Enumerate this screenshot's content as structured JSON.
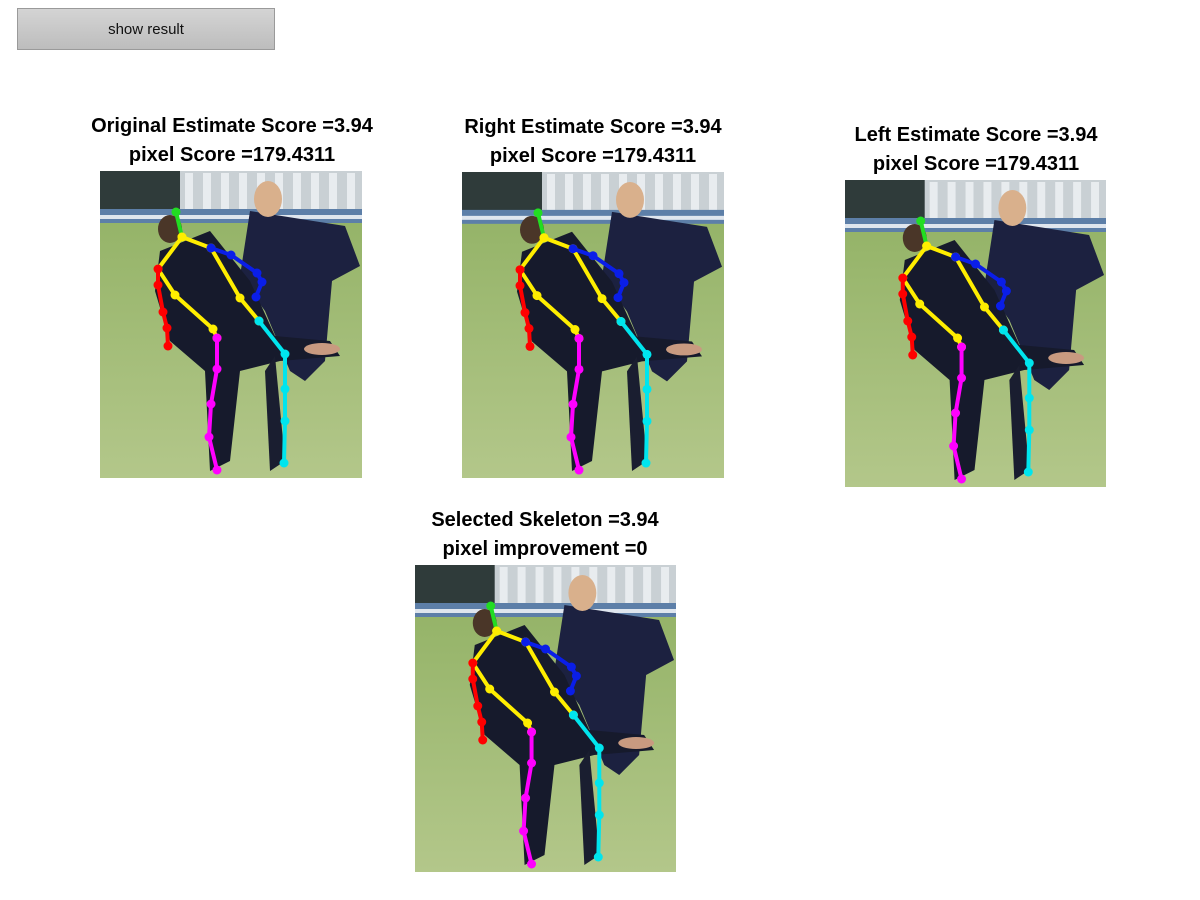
{
  "toolbar": {
    "show_result_label": "show result"
  },
  "panels": [
    {
      "title_line1": "Original Estimate Score =3.94",
      "title_line2": "pixel Score =179.4311"
    },
    {
      "title_line1": "Right Estimate Score =3.94",
      "title_line2": "pixel Score =179.4311"
    },
    {
      "title_line1": "Left Estimate Score =3.94",
      "title_line2": "pixel Score =179.4311"
    },
    {
      "title_line1": "Selected Skeleton =3.94",
      "title_line2": "pixel improvement =0"
    }
  ],
  "skeleton_colors": {
    "head": "#22dd22",
    "torso": "#ffee00",
    "right_arm": "#0a1ee8",
    "left_arm": "#ff0000",
    "left_leg": "#ff00ff",
    "right_leg": "#00e5ee"
  }
}
